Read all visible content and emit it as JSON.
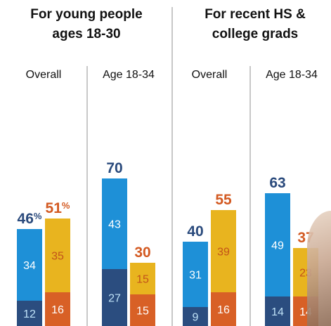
{
  "colors": {
    "total_dark": "#2a4a7c",
    "total_orange": "#d35a22",
    "bar_blue": "#1e90d7",
    "bar_yellow": "#e8b41f",
    "bar_navy": "#2b4d7f",
    "bar_orange": "#d86026",
    "seg_label_light_blue": "#bfe2f7",
    "seg_label_orange": "#c2531a",
    "divider": "#b5b5b5"
  },
  "groups": [
    {
      "title_line1": "For young people",
      "title_line2": "ages 18-30"
    },
    {
      "title_line1": "For recent HS &",
      "title_line2": "college grads"
    }
  ],
  "chart_data": {
    "type": "bar",
    "stacked": true,
    "panels": [
      {
        "group": "For young people ages 18-30",
        "label": "Overall",
        "bars": [
          {
            "total": 46,
            "total_label": "46",
            "suffix": "%",
            "upper": 34,
            "lower": 12,
            "color": "blue"
          },
          {
            "total": 51,
            "total_label": "51",
            "suffix": "%",
            "upper": 35,
            "lower": 16,
            "color": "yellow"
          }
        ]
      },
      {
        "group": "For young people ages 18-30",
        "label": "Age 18-34",
        "bars": [
          {
            "total": 70,
            "total_label": "70",
            "suffix": "",
            "upper": 43,
            "lower": 27,
            "color": "blue"
          },
          {
            "total": 30,
            "total_label": "30",
            "suffix": "",
            "upper": 15,
            "lower": 15,
            "color": "yellow"
          }
        ]
      },
      {
        "group": "For recent HS & college grads",
        "label": "Overall",
        "bars": [
          {
            "total": 40,
            "total_label": "40",
            "suffix": "",
            "upper": 31,
            "lower": 9,
            "color": "blue"
          },
          {
            "total": 55,
            "total_label": "55",
            "suffix": "",
            "upper": 39,
            "lower": 16,
            "color": "yellow"
          }
        ]
      },
      {
        "group": "For recent HS & college grads",
        "label": "Age 18-34",
        "bars": [
          {
            "total": 63,
            "total_label": "63",
            "suffix": "",
            "upper": 49,
            "lower": 14,
            "color": "blue"
          },
          {
            "total": 37,
            "total_label": "37",
            "suffix": "",
            "upper": 23,
            "lower": 14,
            "color": "yellow"
          }
        ]
      }
    ]
  }
}
